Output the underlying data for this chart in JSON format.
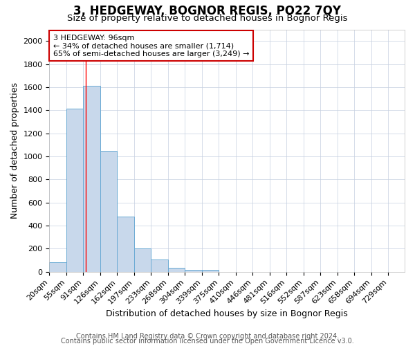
{
  "title": "3, HEDGEWAY, BOGNOR REGIS, PO22 7QY",
  "subtitle": "Size of property relative to detached houses in Bognor Regis",
  "xlabel": "Distribution of detached houses by size in Bognor Regis",
  "ylabel": "Number of detached properties",
  "bar_edges": [
    20,
    55,
    91,
    126,
    162,
    197,
    233,
    268,
    304,
    339,
    375,
    410,
    446,
    481,
    516,
    552,
    587,
    623,
    658,
    694,
    729,
    764
  ],
  "bar_heights": [
    80,
    1415,
    1610,
    1050,
    480,
    200,
    105,
    35,
    15,
    15,
    0,
    0,
    0,
    0,
    0,
    0,
    0,
    0,
    0,
    0,
    0
  ],
  "x_tick_positions": [
    20,
    55,
    91,
    126,
    162,
    197,
    233,
    268,
    304,
    339,
    375,
    410,
    446,
    481,
    516,
    552,
    587,
    623,
    658,
    694,
    729
  ],
  "x_tick_labels": [
    "20sqm",
    "55sqm",
    "91sqm",
    "126sqm",
    "162sqm",
    "197sqm",
    "233sqm",
    "268sqm",
    "304sqm",
    "339sqm",
    "375sqm",
    "410sqm",
    "446sqm",
    "481sqm",
    "516sqm",
    "552sqm",
    "587sqm",
    "623sqm",
    "658sqm",
    "694sqm",
    "729sqm"
  ],
  "ylim": [
    0,
    2100
  ],
  "yticks": [
    0,
    200,
    400,
    600,
    800,
    1000,
    1200,
    1400,
    1600,
    1800,
    2000
  ],
  "bar_color": "#c8d8eb",
  "bar_edge_color": "#6aaad4",
  "red_line_x": 96,
  "annotation_text": "3 HEDGEWAY: 96sqm\n← 34% of detached houses are smaller (1,714)\n65% of semi-detached houses are larger (3,249) →",
  "annotation_box_facecolor": "#ffffff",
  "annotation_box_edgecolor": "#cc0000",
  "grid_color": "#c5cfe0",
  "plot_bg_color": "#ffffff",
  "fig_bg_color": "#ffffff",
  "title_fontsize": 12,
  "subtitle_fontsize": 9.5,
  "axis_label_fontsize": 9,
  "tick_fontsize": 8,
  "annotation_fontsize": 8,
  "footer_fontsize": 7,
  "footer_line1": "Contains HM Land Registry data © Crown copyright and database right 2024.",
  "footer_line2": "Contains public sector information licensed under the Open Government Licence v3.0."
}
